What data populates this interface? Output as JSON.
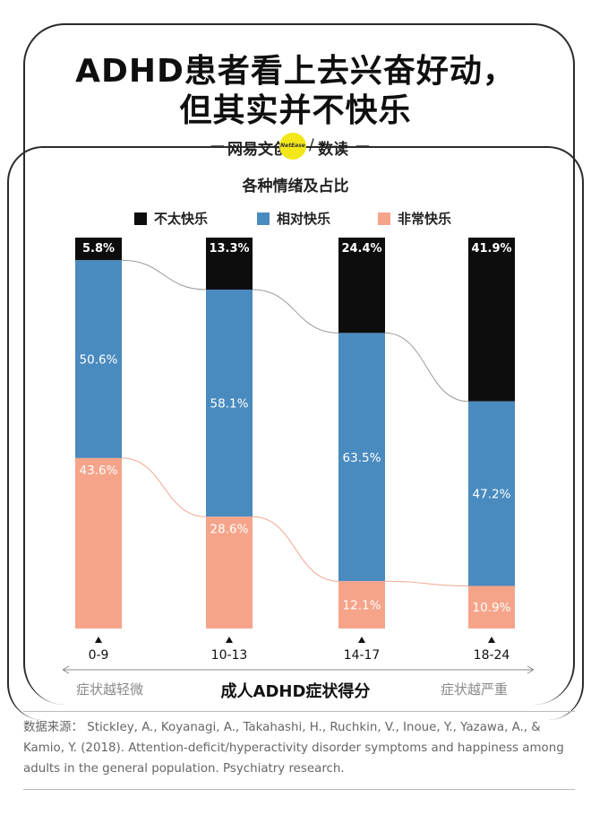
{
  "title": {
    "line1": "ADHD患者看上去兴奋好动，",
    "line2": "但其实并不快乐"
  },
  "brand": {
    "left": "网易文创",
    "logo": "NetEase",
    "slash": "/",
    "right": "数读"
  },
  "colors": {
    "black": "#0d0d0d",
    "blue": "#4a8bbf",
    "salmon": "#f5a48a"
  },
  "chart_data": {
    "type": "bar",
    "stacked": true,
    "title": "各种情绪及占比",
    "xlabel": "成人ADHD症状得分",
    "ylabel": "",
    "ylim": [
      0,
      100
    ],
    "categories": [
      "0-9",
      "10-13",
      "14-17",
      "18-24"
    ],
    "series": [
      {
        "name": "不太快乐",
        "color": "#0d0d0d",
        "values": [
          5.8,
          13.3,
          24.4,
          41.9
        ]
      },
      {
        "name": "相对快乐",
        "color": "#4a8bbf",
        "values": [
          50.6,
          58.1,
          63.5,
          47.2
        ]
      },
      {
        "name": "非常快乐",
        "color": "#f5a48a",
        "values": [
          43.6,
          28.6,
          12.1,
          10.9
        ]
      }
    ],
    "data_labels": [
      [
        "5.8%",
        "13.3%",
        "24.4%",
        "41.9%"
      ],
      [
        "50.6%",
        "58.1%",
        "63.5%",
        "47.2%"
      ],
      [
        "43.6%",
        "28.6%",
        "12.1%",
        "10.9%"
      ]
    ],
    "legend_position": "top",
    "grid": false,
    "axis_notes": {
      "left": "症状越轻微",
      "right": "症状越严重"
    }
  },
  "source": {
    "text": "数据来源：  Stickley, A., Koyanagi, A., Takahashi, H., Ruchkin, V., Inoue, Y., Yazawa, A., & Kamio, Y. (2018). Attention-deficit/hyperactivity disorder symptoms and happiness among adults in the general population. Psychiatry research."
  }
}
